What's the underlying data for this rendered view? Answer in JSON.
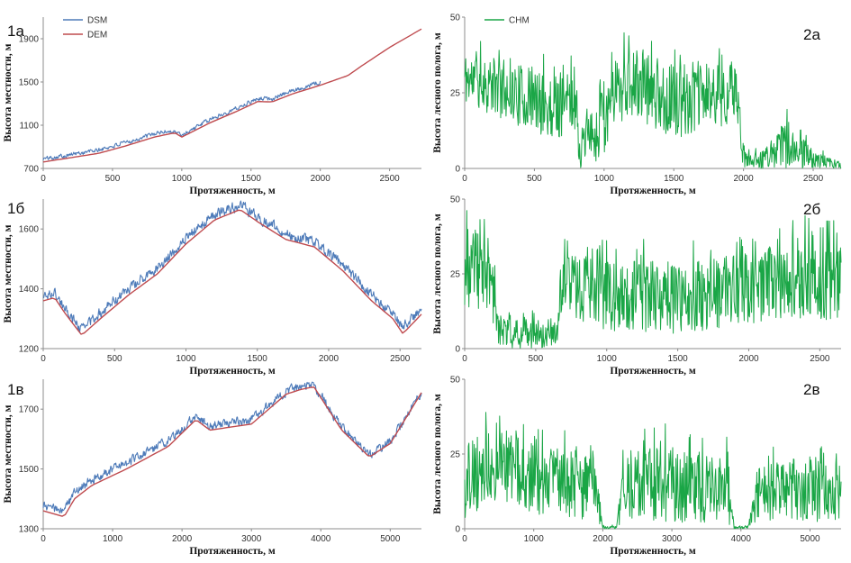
{
  "colors": {
    "dsm": "#4e7bb9",
    "dem": "#bf4b4f",
    "chm": "#1aa646",
    "axis": "#8c8c8c"
  },
  "chart_data": [
    {
      "id": "1a",
      "panel_label": "1а",
      "type": "line",
      "xlabel": "Протяженность, м",
      "ylabel": "Высота местности, м",
      "xlim": [
        0,
        2730
      ],
      "ylim": [
        700,
        2100
      ],
      "xticks": [
        0,
        500,
        1000,
        1500,
        2000,
        2500
      ],
      "yticks": [
        700,
        1100,
        1500,
        1900
      ],
      "legend": {
        "position": "top-left"
      },
      "series": [
        {
          "name": "DSM",
          "color_key": "dsm",
          "noise": 28,
          "x": [
            0,
            200,
            400,
            600,
            800,
            900,
            950,
            1000,
            1200,
            1400,
            1550,
            1650,
            1800,
            2000
          ],
          "y": [
            790,
            830,
            870,
            940,
            1020,
            1045,
            1040,
            1010,
            1150,
            1260,
            1350,
            1345,
            1420,
            1500
          ]
        },
        {
          "name": "DEM",
          "color_key": "dem",
          "noise": 0,
          "x": [
            0,
            200,
            400,
            600,
            800,
            950,
            1000,
            1200,
            1400,
            1550,
            1650,
            1800,
            2000,
            2200,
            2300,
            2500,
            2730
          ],
          "y": [
            760,
            800,
            840,
            910,
            990,
            1030,
            990,
            1120,
            1230,
            1320,
            1315,
            1390,
            1470,
            1560,
            1650,
            1820,
            1990
          ]
        }
      ]
    },
    {
      "id": "1b",
      "panel_label": "1б",
      "type": "line",
      "xlabel": "Протяженность, м",
      "ylabel": "Высота местности, м",
      "xlim": [
        0,
        2650
      ],
      "ylim": [
        1200,
        1700
      ],
      "xticks": [
        0,
        500,
        1000,
        1500,
        2000,
        2500
      ],
      "yticks": [
        1200,
        1400,
        1600
      ],
      "series": [
        {
          "name": "DSM",
          "color_key": "dsm",
          "noise": 25,
          "x": [
            0,
            80,
            150,
            270,
            400,
            600,
            800,
            1000,
            1200,
            1380,
            1500,
            1700,
            1900,
            2100,
            2300,
            2450,
            2520,
            2650
          ],
          "y": [
            1375,
            1385,
            1335,
            1265,
            1320,
            1400,
            1470,
            1570,
            1650,
            1680,
            1640,
            1585,
            1555,
            1480,
            1380,
            1315,
            1275,
            1330
          ]
        },
        {
          "name": "DEM",
          "color_key": "dem",
          "noise": 0,
          "x": [
            0,
            80,
            150,
            270,
            400,
            600,
            800,
            1000,
            1200,
            1380,
            1500,
            1700,
            1900,
            2100,
            2300,
            2450,
            2520,
            2650
          ],
          "y": [
            1360,
            1370,
            1320,
            1245,
            1300,
            1380,
            1450,
            1550,
            1630,
            1665,
            1625,
            1565,
            1540,
            1460,
            1360,
            1300,
            1250,
            1315
          ]
        }
      ]
    },
    {
      "id": "1v",
      "panel_label": "1в",
      "type": "line",
      "xlabel": "Протяженность, м",
      "ylabel": "Высота местности, м",
      "xlim": [
        0,
        5450
      ],
      "ylim": [
        1300,
        1800
      ],
      "xticks": [
        0,
        1000,
        2000,
        3000,
        4000,
        5000
      ],
      "yticks": [
        1300,
        1500,
        1700
      ],
      "series": [
        {
          "name": "DSM",
          "color_key": "dsm",
          "noise": 22,
          "x": [
            0,
            300,
            450,
            700,
            1200,
            1800,
            2200,
            2400,
            3000,
            3500,
            3700,
            3900,
            4300,
            4700,
            5000,
            5450
          ],
          "y": [
            1375,
            1360,
            1420,
            1465,
            1520,
            1595,
            1675,
            1645,
            1665,
            1760,
            1775,
            1780,
            1640,
            1545,
            1590,
            1760
          ]
        },
        {
          "name": "DEM",
          "color_key": "dem",
          "noise": 0,
          "x": [
            0,
            300,
            450,
            700,
            1200,
            1800,
            2200,
            2400,
            3000,
            3500,
            3700,
            3900,
            4300,
            4700,
            5000,
            5450
          ],
          "y": [
            1360,
            1340,
            1400,
            1445,
            1500,
            1575,
            1665,
            1630,
            1650,
            1750,
            1765,
            1775,
            1630,
            1540,
            1585,
            1755
          ]
        }
      ]
    },
    {
      "id": "2a",
      "panel_label": "2а",
      "type": "line",
      "xlabel": "Протяженность, м",
      "ylabel": "Высота лесного полога, м",
      "xlim": [
        0,
        2700
      ],
      "ylim": [
        0,
        50
      ],
      "xticks": [
        0,
        500,
        1000,
        1500,
        2000,
        2500
      ],
      "yticks": [
        0,
        25,
        50
      ],
      "legend": {
        "position": "top-left"
      },
      "series": [
        {
          "name": "CHM",
          "color_key": "chm",
          "style": "noisy",
          "seed": 11,
          "x": [
            0,
            300,
            600,
            800,
            820,
            1000,
            1050,
            1250,
            1500,
            1700,
            1950,
            2000,
            2200,
            2300,
            2500,
            2700
          ],
          "base": [
            30,
            26,
            20,
            22,
            6,
            14,
            27,
            28,
            22,
            24,
            25,
            3,
            4,
            8,
            3,
            1
          ],
          "amp": [
            9,
            10,
            11,
            10,
            6,
            12,
            12,
            12,
            12,
            12,
            10,
            3,
            4,
            8,
            3,
            1
          ]
        }
      ]
    },
    {
      "id": "2b",
      "panel_label": "2б",
      "type": "line",
      "xlabel": "Протяженность, м",
      "ylabel": "Высота лесного полога, м",
      "xlim": [
        0,
        2650
      ],
      "ylim": [
        0,
        50
      ],
      "xticks": [
        0,
        500,
        1000,
        1500,
        2000,
        2500
      ],
      "yticks": [
        0,
        25,
        50
      ],
      "series": [
        {
          "name": "CHM",
          "color_key": "chm",
          "style": "noisy",
          "seed": 23,
          "x": [
            0,
            150,
            250,
            650,
            680,
            1000,
            1500,
            2000,
            2300,
            2650
          ],
          "base": [
            26,
            28,
            6,
            5,
            22,
            18,
            17,
            20,
            24,
            22
          ],
          "amp": [
            14,
            14,
            6,
            5,
            10,
            12,
            12,
            12,
            14,
            13
          ]
        }
      ]
    },
    {
      "id": "2v",
      "panel_label": "2в",
      "type": "line",
      "xlabel": "Протяженность, м",
      "ylabel": "Высота лесного полога, м",
      "xlim": [
        0,
        5450
      ],
      "ylim": [
        0,
        50
      ],
      "xticks": [
        0,
        1000,
        2000,
        3000,
        4000,
        5000
      ],
      "yticks": [
        0,
        25,
        50
      ],
      "series": [
        {
          "name": "CHM",
          "color_key": "chm",
          "style": "noisy",
          "seed": 37,
          "x": [
            0,
            500,
            1000,
            1900,
            2000,
            2200,
            2300,
            3000,
            3800,
            3900,
            4100,
            4300,
            5000,
            5450
          ],
          "base": [
            16,
            22,
            17,
            13,
            0.5,
            0.5,
            14,
            15,
            13,
            0.5,
            0.5,
            14,
            14,
            12
          ],
          "amp": [
            13,
            12,
            12,
            11,
            0.5,
            0.5,
            11,
            13,
            11,
            0.5,
            0.5,
            11,
            12,
            10
          ]
        }
      ]
    }
  ]
}
